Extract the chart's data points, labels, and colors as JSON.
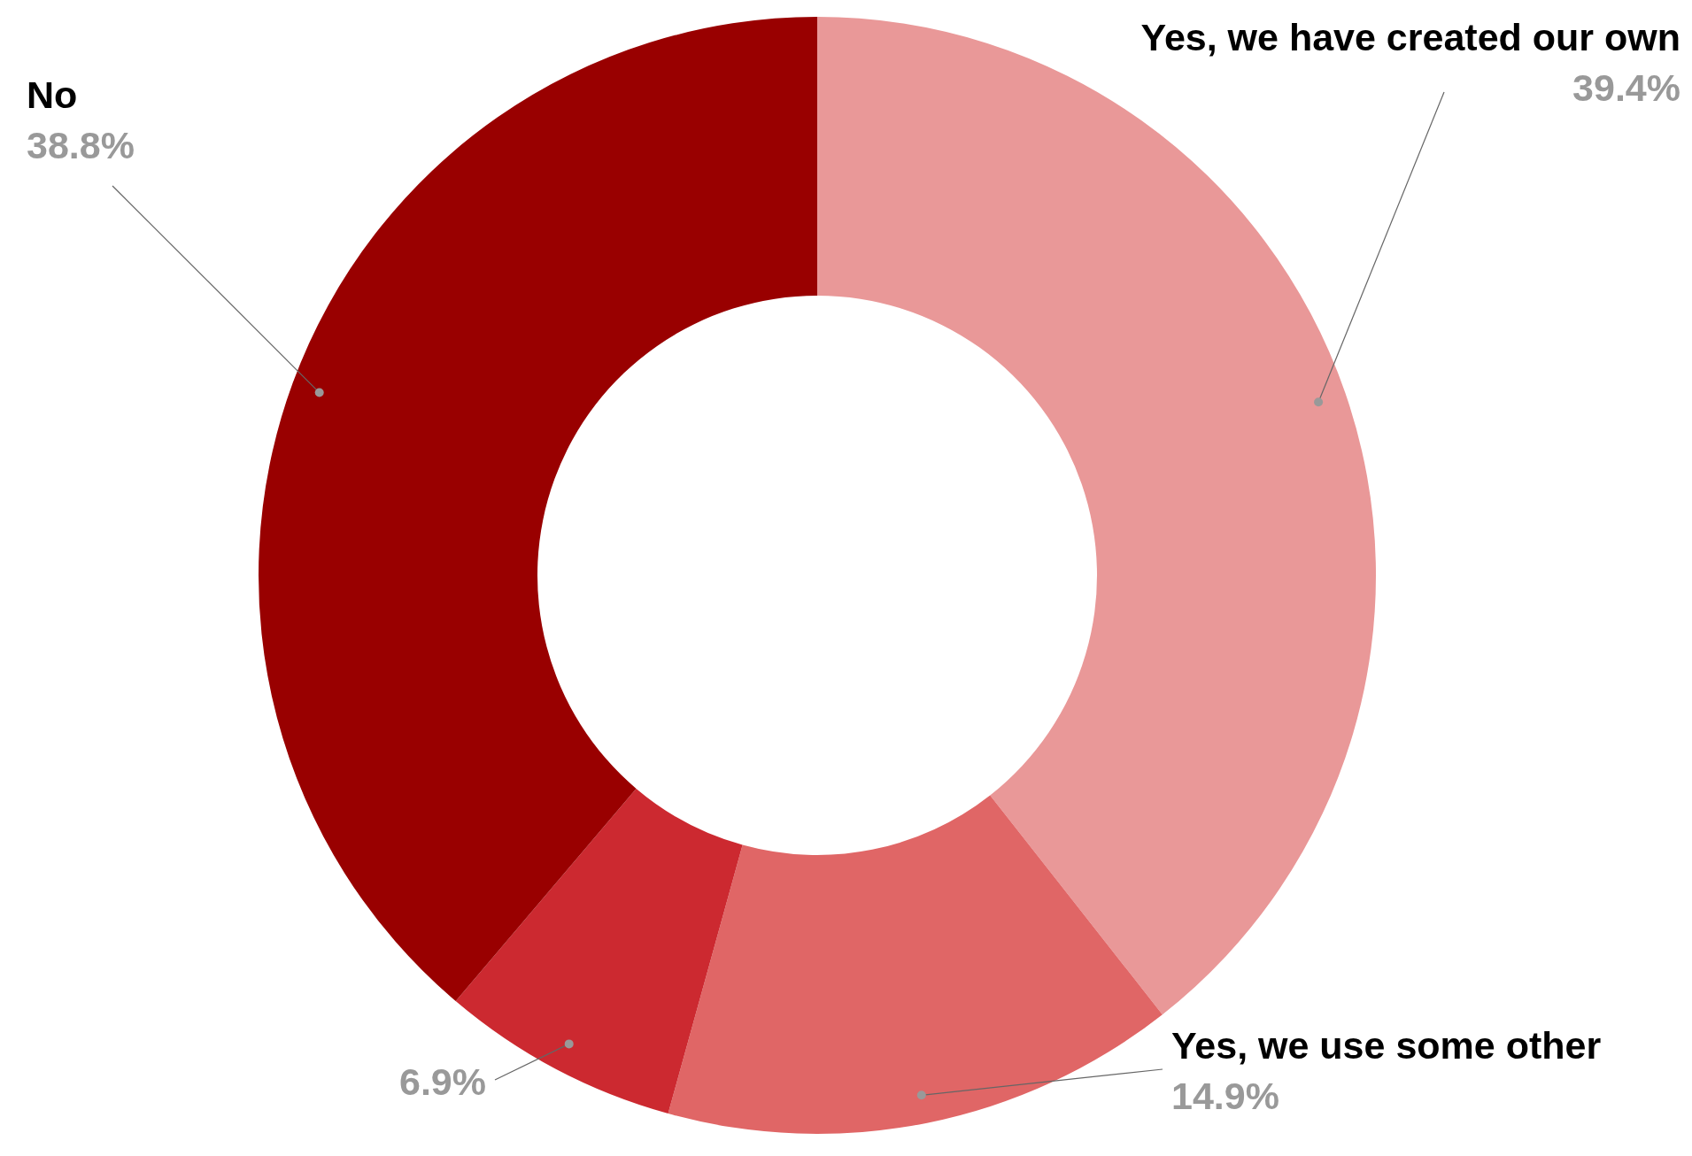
{
  "chart_data": {
    "type": "donut",
    "categories": [
      "Yes, we have created our own",
      "Yes, we use some other",
      null,
      "No"
    ],
    "values": [
      39.4,
      14.9,
      6.9,
      38.8
    ],
    "colors": [
      "#e99898",
      "#e06666",
      "#cc2930",
      "#990000"
    ],
    "value_labels": [
      "39.4%",
      "14.9%",
      "6.9%",
      "38.8%"
    ]
  }
}
